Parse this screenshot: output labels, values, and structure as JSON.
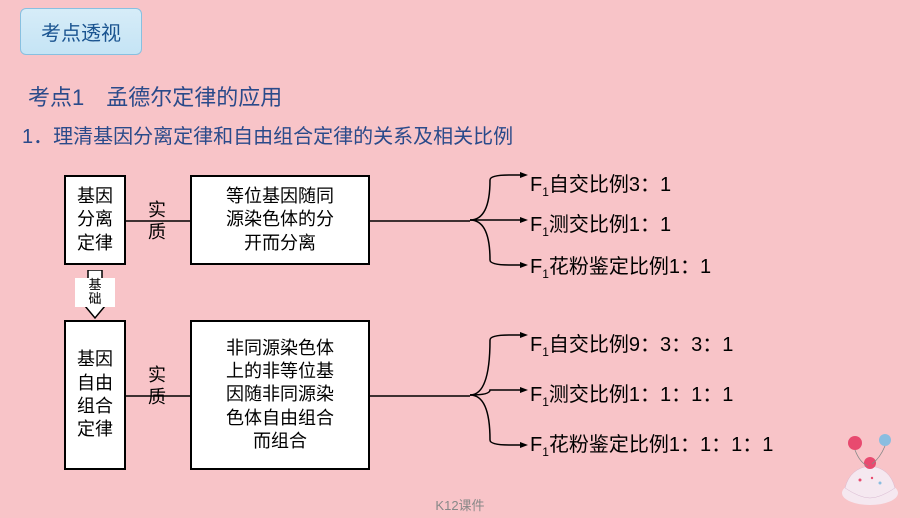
{
  "colors": {
    "background": "#f8c4c8",
    "badge_start": "#d6ecf8",
    "badge_end": "#c5e4f5",
    "badge_border": "#88c0e0",
    "badge_text": "#1a5490",
    "heading_text": "#2a4a8a",
    "box_border": "#000000",
    "box_bg": "#ffffff",
    "line": "#000000",
    "footer": "#888888",
    "decoration_cream": "#f5e8f0",
    "decoration_cherry": "#e84a6f",
    "decoration_balloon1": "#e84a6f",
    "decoration_balloon2": "#8abde0"
  },
  "fonts": {
    "body": "Microsoft YaHei, SimSun, sans-serif",
    "badge_size": 20,
    "heading1_size": 22,
    "heading2_size": 20,
    "box_size": 18,
    "outcome_size": 20,
    "basis_size": 13,
    "footer_size": 13
  },
  "badge": "考点透视",
  "heading1": "考点1　孟德尔定律的应用",
  "heading2": "1．理清基因分离定律和自由组合定律的关系及相关比例",
  "diagram": {
    "law1": {
      "name": "基因\n分离\n定律",
      "essence_label": "实\n质",
      "nature": "等位基因随同\n源染色体的分\n开而分离",
      "outcomes": [
        {
          "prefix": "F",
          "sub": "1",
          "text": "自交比例3：1"
        },
        {
          "prefix": "F",
          "sub": "1",
          "text": "测交比例1：1"
        },
        {
          "prefix": "F",
          "sub": "1",
          "text": "花粉鉴定比例1：1"
        }
      ]
    },
    "basis_label": "基\n础",
    "law2": {
      "name": "基因\n自由\n组合\n定律",
      "essence_label": "实\n质",
      "nature": "非同源染色体\n上的非等位基\n因随非同源染\n色体自由组合\n而组合",
      "outcomes": [
        {
          "prefix": "F",
          "sub": "1",
          "text": "自交比例9：3：3：1"
        },
        {
          "prefix": "F",
          "sub": "1",
          "text": "测交比例1：1：1：1"
        },
        {
          "prefix": "F",
          "sub": "1",
          "text": "花粉鉴定比例1：1：1：1"
        }
      ]
    }
  },
  "footer": "K12课件"
}
